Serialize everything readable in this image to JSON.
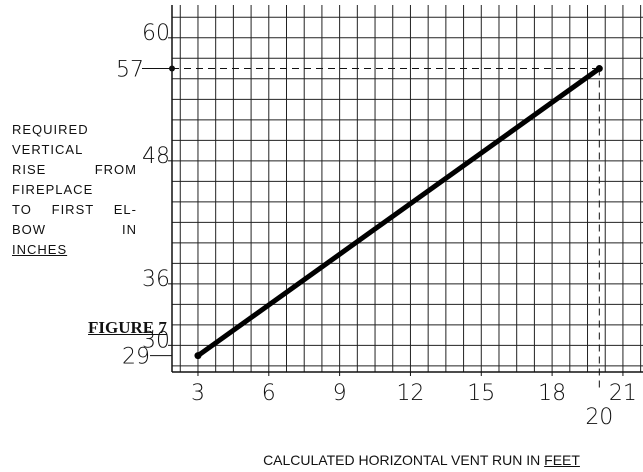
{
  "chart_data": {
    "type": "line",
    "ylabel_lines": [
      "REQUIRED",
      "VERTICAL",
      "RISE FROM",
      "FIREPLACE",
      "TO FIRST EL-",
      "BOW IN",
      "INCHES"
    ],
    "xlabel": "CALCULATED HORIZONTAL VENT RUN IN",
    "xlabel_unit": "FEET",
    "annotation": "FIGURE 7",
    "x": [
      3,
      20
    ],
    "series": [
      {
        "name": "Vertical rise",
        "color": "#000000",
        "values": [
          29,
          57
        ]
      }
    ],
    "xlim": [
      1.9,
      21.85
    ],
    "ylim": [
      27.4,
      63.2
    ],
    "xticks": [
      3,
      6,
      9,
      12,
      15,
      18,
      21
    ],
    "yticks": [
      30,
      36,
      48,
      60
    ],
    "grid": true
  }
}
